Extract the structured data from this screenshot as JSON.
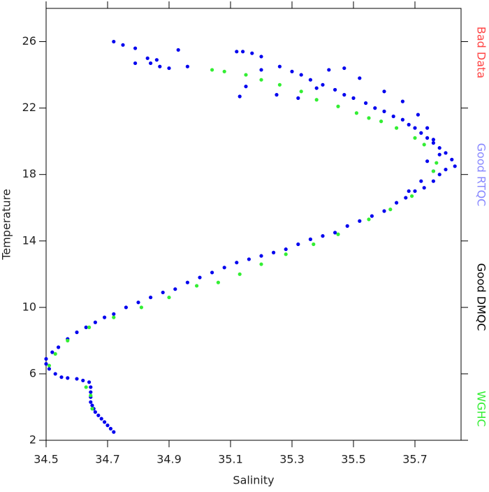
{
  "chart_data": {
    "type": "scatter",
    "x_label": "Salinity",
    "y_label": "Temperature",
    "xlim": [
      34.5,
      35.85
    ],
    "xticks": [
      34.5,
      34.7,
      34.9,
      35.1,
      35.3,
      35.5,
      35.7
    ],
    "ylim": [
      2,
      28
    ],
    "yticks": [
      2,
      6,
      10,
      14,
      18,
      22,
      26
    ],
    "legend": [
      {
        "text": "Bad Data",
        "color": "#ff4444"
      },
      {
        "text": "Good RTQC",
        "color": "#8888ff"
      },
      {
        "text": "Good DMQC",
        "color": "#000000"
      },
      {
        "text": "WGHC",
        "color": "#33ee33"
      }
    ],
    "series": [
      {
        "color": "#0000ee",
        "x": [
          34.72,
          34.71,
          34.7,
          34.69,
          34.68,
          34.67,
          34.66,
          34.655,
          34.65,
          34.645,
          34.645,
          34.645,
          34.645,
          34.64,
          34.62,
          34.6,
          34.57,
          34.55,
          34.53,
          34.51,
          34.5,
          34.5,
          34.52,
          34.54,
          34.57,
          34.6,
          34.63,
          34.66,
          34.69,
          34.72,
          34.76,
          34.8,
          34.84,
          34.88,
          34.92,
          34.96,
          35.0,
          35.04,
          35.08,
          35.12,
          35.16,
          35.2,
          35.24,
          35.28,
          35.32,
          35.36,
          35.4,
          35.44,
          35.48,
          35.52,
          35.56,
          35.6,
          35.64,
          35.67,
          35.7,
          35.73,
          35.76,
          35.78,
          35.8,
          35.83,
          35.82,
          35.8,
          35.78,
          35.76,
          35.74,
          35.72,
          35.7,
          35.68,
          35.66,
          35.63,
          35.6,
          35.57,
          35.54,
          35.5,
          35.47,
          35.44,
          35.4,
          35.36,
          35.33,
          35.3,
          35.26,
          35.2,
          35.17,
          35.14,
          35.12,
          35.2,
          35.15,
          35.13,
          35.25,
          35.32,
          35.38,
          35.42,
          35.47,
          35.52,
          35.6,
          35.66,
          35.71,
          35.74,
          35.76,
          35.78,
          35.74,
          35.76,
          35.72,
          35.68,
          34.72,
          34.75,
          34.79,
          34.83,
          34.86,
          34.84,
          34.87,
          34.9,
          34.93,
          34.96,
          34.79
        ],
        "y": [
          2.5,
          2.7,
          2.9,
          3.1,
          3.3,
          3.5,
          3.7,
          3.9,
          4.1,
          4.3,
          4.6,
          4.9,
          5.2,
          5.5,
          5.6,
          5.7,
          5.75,
          5.8,
          6.0,
          6.3,
          6.6,
          6.9,
          7.3,
          7.6,
          8.1,
          8.5,
          8.8,
          9.1,
          9.4,
          9.6,
          10.0,
          10.3,
          10.6,
          10.9,
          11.1,
          11.5,
          11.8,
          12.1,
          12.4,
          12.7,
          12.9,
          13.1,
          13.3,
          13.5,
          13.8,
          14.1,
          14.3,
          14.5,
          14.9,
          15.2,
          15.5,
          15.8,
          16.3,
          16.6,
          17.0,
          17.2,
          17.6,
          18.0,
          18.3,
          18.5,
          18.9,
          19.3,
          19.6,
          19.9,
          20.2,
          20.5,
          20.8,
          21.0,
          21.3,
          21.5,
          21.8,
          22.0,
          22.3,
          22.6,
          22.8,
          23.1,
          23.4,
          23.7,
          24.0,
          24.2,
          24.5,
          25.1,
          25.3,
          25.4,
          25.4,
          24.3,
          23.3,
          22.7,
          22.8,
          22.6,
          23.2,
          24.3,
          24.4,
          23.8,
          23.0,
          22.4,
          21.6,
          20.8,
          20.1,
          19.2,
          18.8,
          18.2,
          17.6,
          17.0,
          26.0,
          25.8,
          25.6,
          25.0,
          24.9,
          24.7,
          24.5,
          24.4,
          25.5,
          24.5,
          24.7
        ]
      },
      {
        "color": "#33ee33",
        "x": [
          34.53,
          34.57,
          34.64,
          34.72,
          34.81,
          34.9,
          34.99,
          35.06,
          35.13,
          35.2,
          35.28,
          35.37,
          35.45,
          35.55,
          35.62,
          35.69,
          35.76,
          35.77,
          35.73,
          35.7,
          35.64,
          35.59,
          35.55,
          35.51,
          35.45,
          35.38,
          35.33,
          35.26,
          35.2,
          35.15,
          35.08,
          35.04,
          34.63,
          34.645,
          34.65,
          34.51
        ],
        "y": [
          7.2,
          8.0,
          8.8,
          9.4,
          10.0,
          10.6,
          11.3,
          11.5,
          12.0,
          12.6,
          13.2,
          13.8,
          14.4,
          15.3,
          15.9,
          16.7,
          18.2,
          18.7,
          19.8,
          20.2,
          20.8,
          21.2,
          21.4,
          21.7,
          22.1,
          22.5,
          23.0,
          23.4,
          23.7,
          24.0,
          24.2,
          24.3,
          5.2,
          4.7,
          3.9,
          6.5
        ]
      }
    ]
  }
}
